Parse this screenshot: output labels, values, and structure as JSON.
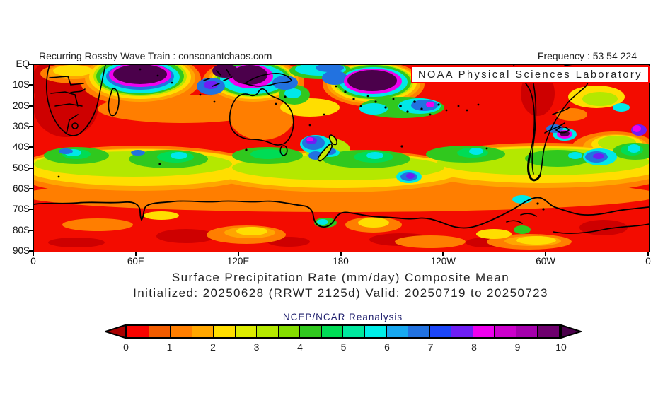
{
  "header": {
    "left": "Recurring Rossby Wave Train : consonantchaos.com",
    "right": "Frequency : 53 54 224"
  },
  "map": {
    "overlay_label": "NOAA Physical Sciences Laboratory",
    "lat_labels": [
      "EQ",
      "10S",
      "20S",
      "30S",
      "40S",
      "50S",
      "60S",
      "70S",
      "80S",
      "90S"
    ],
    "lon_labels": [
      "0",
      "60E",
      "120E",
      "180",
      "120W",
      "60W",
      "0"
    ]
  },
  "titles": {
    "line1": "Surface Precipitation Rate (mm/day) Composite Mean",
    "line2": "Initialized: 20250628 (RRWT 2125d) Valid: 20250719 to 20250723",
    "source": "NCEP/NCAR Reanalysis"
  },
  "colorbar": {
    "tick_labels": [
      "0",
      "1",
      "2",
      "3",
      "4",
      "5",
      "6",
      "7",
      "8",
      "9",
      "10"
    ],
    "left_arrow_color": "#A80000",
    "right_arrow_color": "#4B004B",
    "segment_colors": [
      "#F80400",
      "#F25C00",
      "#FF7E00",
      "#FFA600",
      "#FFDE00",
      "#DCEC00",
      "#B4E800",
      "#84DC00",
      "#30C81E",
      "#00DC55",
      "#00E89E",
      "#00EEE8",
      "#18A8F0",
      "#2272E0",
      "#1C46F8",
      "#6E1EF4",
      "#EE00EE",
      "#CC00CC",
      "#A400AC",
      "#6E006E"
    ]
  },
  "chart_data": {
    "type": "heatmap",
    "title": "Surface Precipitation Rate (mm/day) Composite Mean",
    "subtitle": "Initialized: 20250628 (RRWT 2125d) Valid: 20250719 to 20250723",
    "source_label": "NCEP/NCAR Reanalysis",
    "units": "mm/day",
    "colorbar_ticks": [
      0,
      1,
      2,
      3,
      4,
      5,
      6,
      7,
      8,
      9,
      10
    ],
    "colorbar_range": [
      0,
      10
    ],
    "x_axis": {
      "labels": [
        "0",
        "60E",
        "120E",
        "180",
        "120W",
        "60W",
        "0"
      ],
      "range_deg_lon": [
        0,
        360
      ]
    },
    "y_axis": {
      "labels": [
        "EQ",
        "10S",
        "20S",
        "30S",
        "40S",
        "50S",
        "60S",
        "70S",
        "80S",
        "90S"
      ]
    },
    "legend_position": "bottom"
  }
}
